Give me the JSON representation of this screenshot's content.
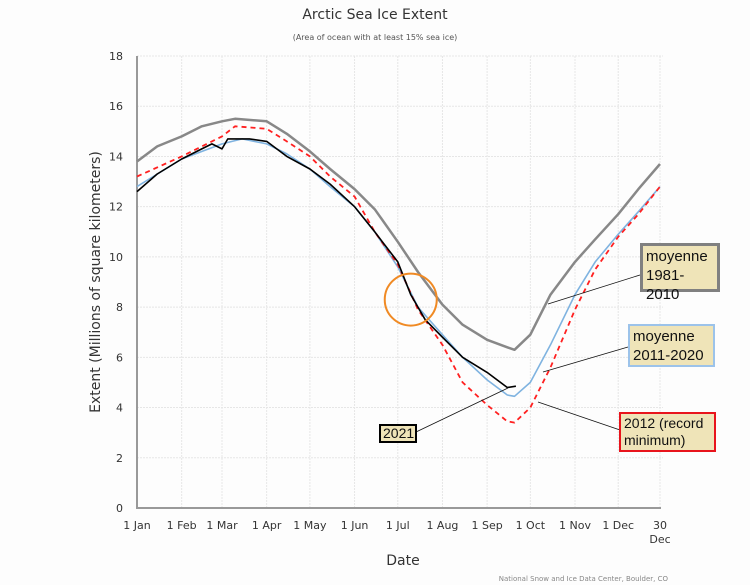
{
  "chart_data": {
    "type": "line",
    "title": "Arctic Sea Ice Extent",
    "subtitle": "(Area of ocean with at least 15% sea ice)",
    "xlabel": "Date",
    "ylabel": "Extent (Millions of square kilometers)",
    "ylim": [
      0,
      18
    ],
    "yticks": [
      0,
      2,
      4,
      6,
      8,
      10,
      12,
      14,
      16,
      18
    ],
    "xticks": [
      {
        "date": "01-01",
        "label": "1 Jan"
      },
      {
        "date": "02-01",
        "label": "1 Feb"
      },
      {
        "date": "03-01",
        "label": "1 Mar"
      },
      {
        "date": "04-01",
        "label": "1 Apr"
      },
      {
        "date": "05-01",
        "label": "1 May"
      },
      {
        "date": "06-01",
        "label": "1 Jun"
      },
      {
        "date": "07-01",
        "label": "1 Jul"
      },
      {
        "date": "08-01",
        "label": "1 Aug"
      },
      {
        "date": "09-01",
        "label": "1 Sep"
      },
      {
        "date": "10-01",
        "label": "1 Oct"
      },
      {
        "date": "11-01",
        "label": "1 Nov"
      },
      {
        "date": "12-01",
        "label": "1 Dec"
      },
      {
        "date": "12-30",
        "label": "30",
        "label2": "Dec"
      }
    ],
    "grid": true,
    "credit": "National Snow and Ice Data Center, Boulder, CO",
    "series": [
      {
        "name": "moyenne 1981-2010",
        "color": "#888888",
        "style": "solid",
        "x": [
          "01-01",
          "01-15",
          "02-01",
          "02-15",
          "03-01",
          "03-10",
          "04-01",
          "04-15",
          "05-01",
          "05-15",
          "06-01",
          "06-15",
          "07-01",
          "07-15",
          "08-01",
          "08-15",
          "09-01",
          "09-15",
          "09-20",
          "10-01",
          "10-15",
          "11-01",
          "11-15",
          "12-01",
          "12-15",
          "12-30"
        ],
        "y": [
          13.8,
          14.4,
          14.8,
          15.2,
          15.4,
          15.5,
          15.4,
          14.9,
          14.2,
          13.5,
          12.7,
          11.9,
          10.6,
          9.4,
          8.1,
          7.3,
          6.7,
          6.4,
          6.3,
          6.9,
          8.5,
          9.8,
          10.7,
          11.7,
          12.7,
          13.7
        ]
      },
      {
        "name": "moyenne 2011-2020",
        "color": "#7fb3e0",
        "style": "solid",
        "x": [
          "01-01",
          "02-01",
          "03-01",
          "03-15",
          "04-01",
          "04-15",
          "05-01",
          "05-15",
          "06-01",
          "06-15",
          "07-01",
          "07-15",
          "08-01",
          "08-15",
          "09-01",
          "09-15",
          "09-20",
          "10-01",
          "10-15",
          "11-01",
          "11-15",
          "12-01",
          "12-15",
          "12-30"
        ],
        "y": [
          12.8,
          13.9,
          14.5,
          14.7,
          14.5,
          14.1,
          13.5,
          12.8,
          12.0,
          11.0,
          9.6,
          8.0,
          6.9,
          6.0,
          5.1,
          4.5,
          4.45,
          5.0,
          6.5,
          8.5,
          9.8,
          10.9,
          11.8,
          12.8
        ]
      },
      {
        "name": "2012 (record minimum)",
        "color": "#ff2020",
        "style": "dashed",
        "x": [
          "01-01",
          "02-01",
          "03-01",
          "03-10",
          "04-01",
          "04-15",
          "05-01",
          "05-15",
          "06-01",
          "06-15",
          "07-01",
          "07-15",
          "08-01",
          "08-15",
          "09-01",
          "09-15",
          "09-20",
          "10-01",
          "10-15",
          "11-01",
          "11-15",
          "12-01",
          "12-15",
          "12-30"
        ],
        "y": [
          13.2,
          14.0,
          14.8,
          15.2,
          15.1,
          14.6,
          14.0,
          13.2,
          12.4,
          11.0,
          9.7,
          7.9,
          6.5,
          5.0,
          4.1,
          3.45,
          3.4,
          4.0,
          5.6,
          7.9,
          9.5,
          10.8,
          11.7,
          12.8
        ]
      },
      {
        "name": "2021",
        "color": "#000000",
        "style": "solid",
        "x": [
          "01-01",
          "01-15",
          "02-01",
          "02-15",
          "02-22",
          "03-01",
          "03-05",
          "03-20",
          "04-01",
          "04-15",
          "05-01",
          "05-15",
          "06-01",
          "06-15",
          "07-01",
          "07-10",
          "07-20",
          "08-01",
          "08-15",
          "09-01",
          "09-15",
          "09-21"
        ],
        "y": [
          12.6,
          13.3,
          13.9,
          14.3,
          14.5,
          14.3,
          14.7,
          14.7,
          14.6,
          14.0,
          13.5,
          12.9,
          12.0,
          11.0,
          9.8,
          8.5,
          7.5,
          6.8,
          6.0,
          5.4,
          4.8,
          4.85
        ]
      }
    ],
    "annotations": [
      {
        "text_line1": "moyenne",
        "text_line2": "1981-2010",
        "border": "#808080"
      },
      {
        "text_line1": "moyenne",
        "text_line2": "2011-2020",
        "border": "#9cc3ea"
      },
      {
        "text_line1": "2012 (record",
        "text_line2": "minimum)",
        "border": "#e8141c"
      },
      {
        "text_line1": "2021",
        "border": "#000000"
      }
    ],
    "highlight_circle": {
      "color": "#f08a24",
      "date": "07-10",
      "value": 8.3
    }
  }
}
